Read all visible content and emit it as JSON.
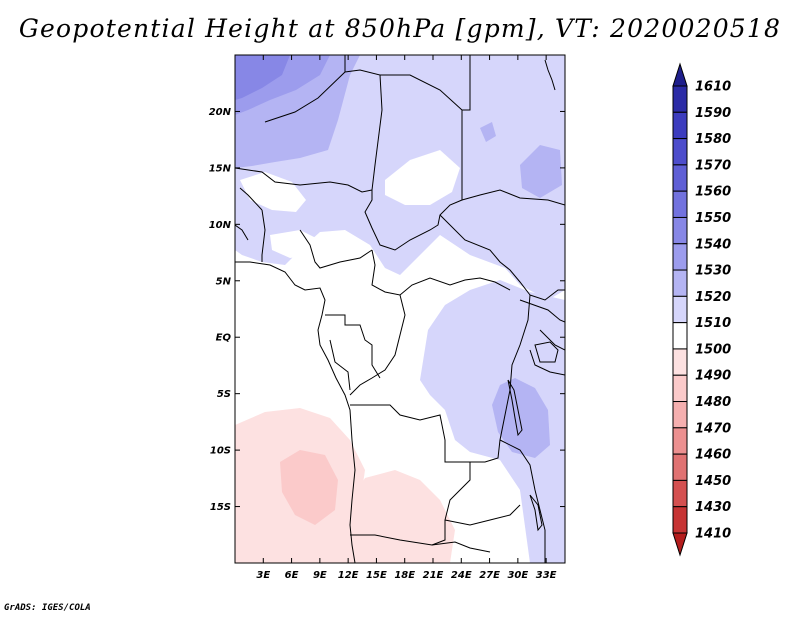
{
  "title": "Geopotential Height at 850hPa [gpm], VT: 2020020518",
  "credit": "GrADS: IGES/COLA",
  "map": {
    "lat_ticks": [
      "20N",
      "15N",
      "10N",
      "5N",
      "EQ",
      "5S",
      "10S",
      "15S"
    ],
    "lat_values": [
      20,
      15,
      10,
      5,
      0,
      -5,
      -10,
      -15
    ],
    "lon_ticks": [
      "3E",
      "6E",
      "9E",
      "12E",
      "15E",
      "18E",
      "21E",
      "24E",
      "27E",
      "30E",
      "33E"
    ],
    "lon_values": [
      3,
      6,
      9,
      12,
      15,
      18,
      21,
      24,
      27,
      30,
      33
    ],
    "lon_range": [
      0,
      35
    ],
    "lat_range": [
      -20,
      25
    ]
  },
  "colorbar": {
    "labels": [
      "1610",
      "1590",
      "1580",
      "1570",
      "1560",
      "1550",
      "1540",
      "1530",
      "1520",
      "1510",
      "1500",
      "1490",
      "1480",
      "1470",
      "1460",
      "1450",
      "1430",
      "1410"
    ],
    "colors": [
      "#1f1f8c",
      "#2b2ba6",
      "#3c3cbe",
      "#4d4dcc",
      "#5f5fd6",
      "#7272de",
      "#8787e6",
      "#9c9ced",
      "#b4b4f3",
      "#d6d6fb",
      "#ffffff",
      "#fde1e1",
      "#fbcaca",
      "#f5afaf",
      "#ec9090",
      "#e07272",
      "#d45050",
      "#c63434",
      "#b41d1d"
    ]
  }
}
